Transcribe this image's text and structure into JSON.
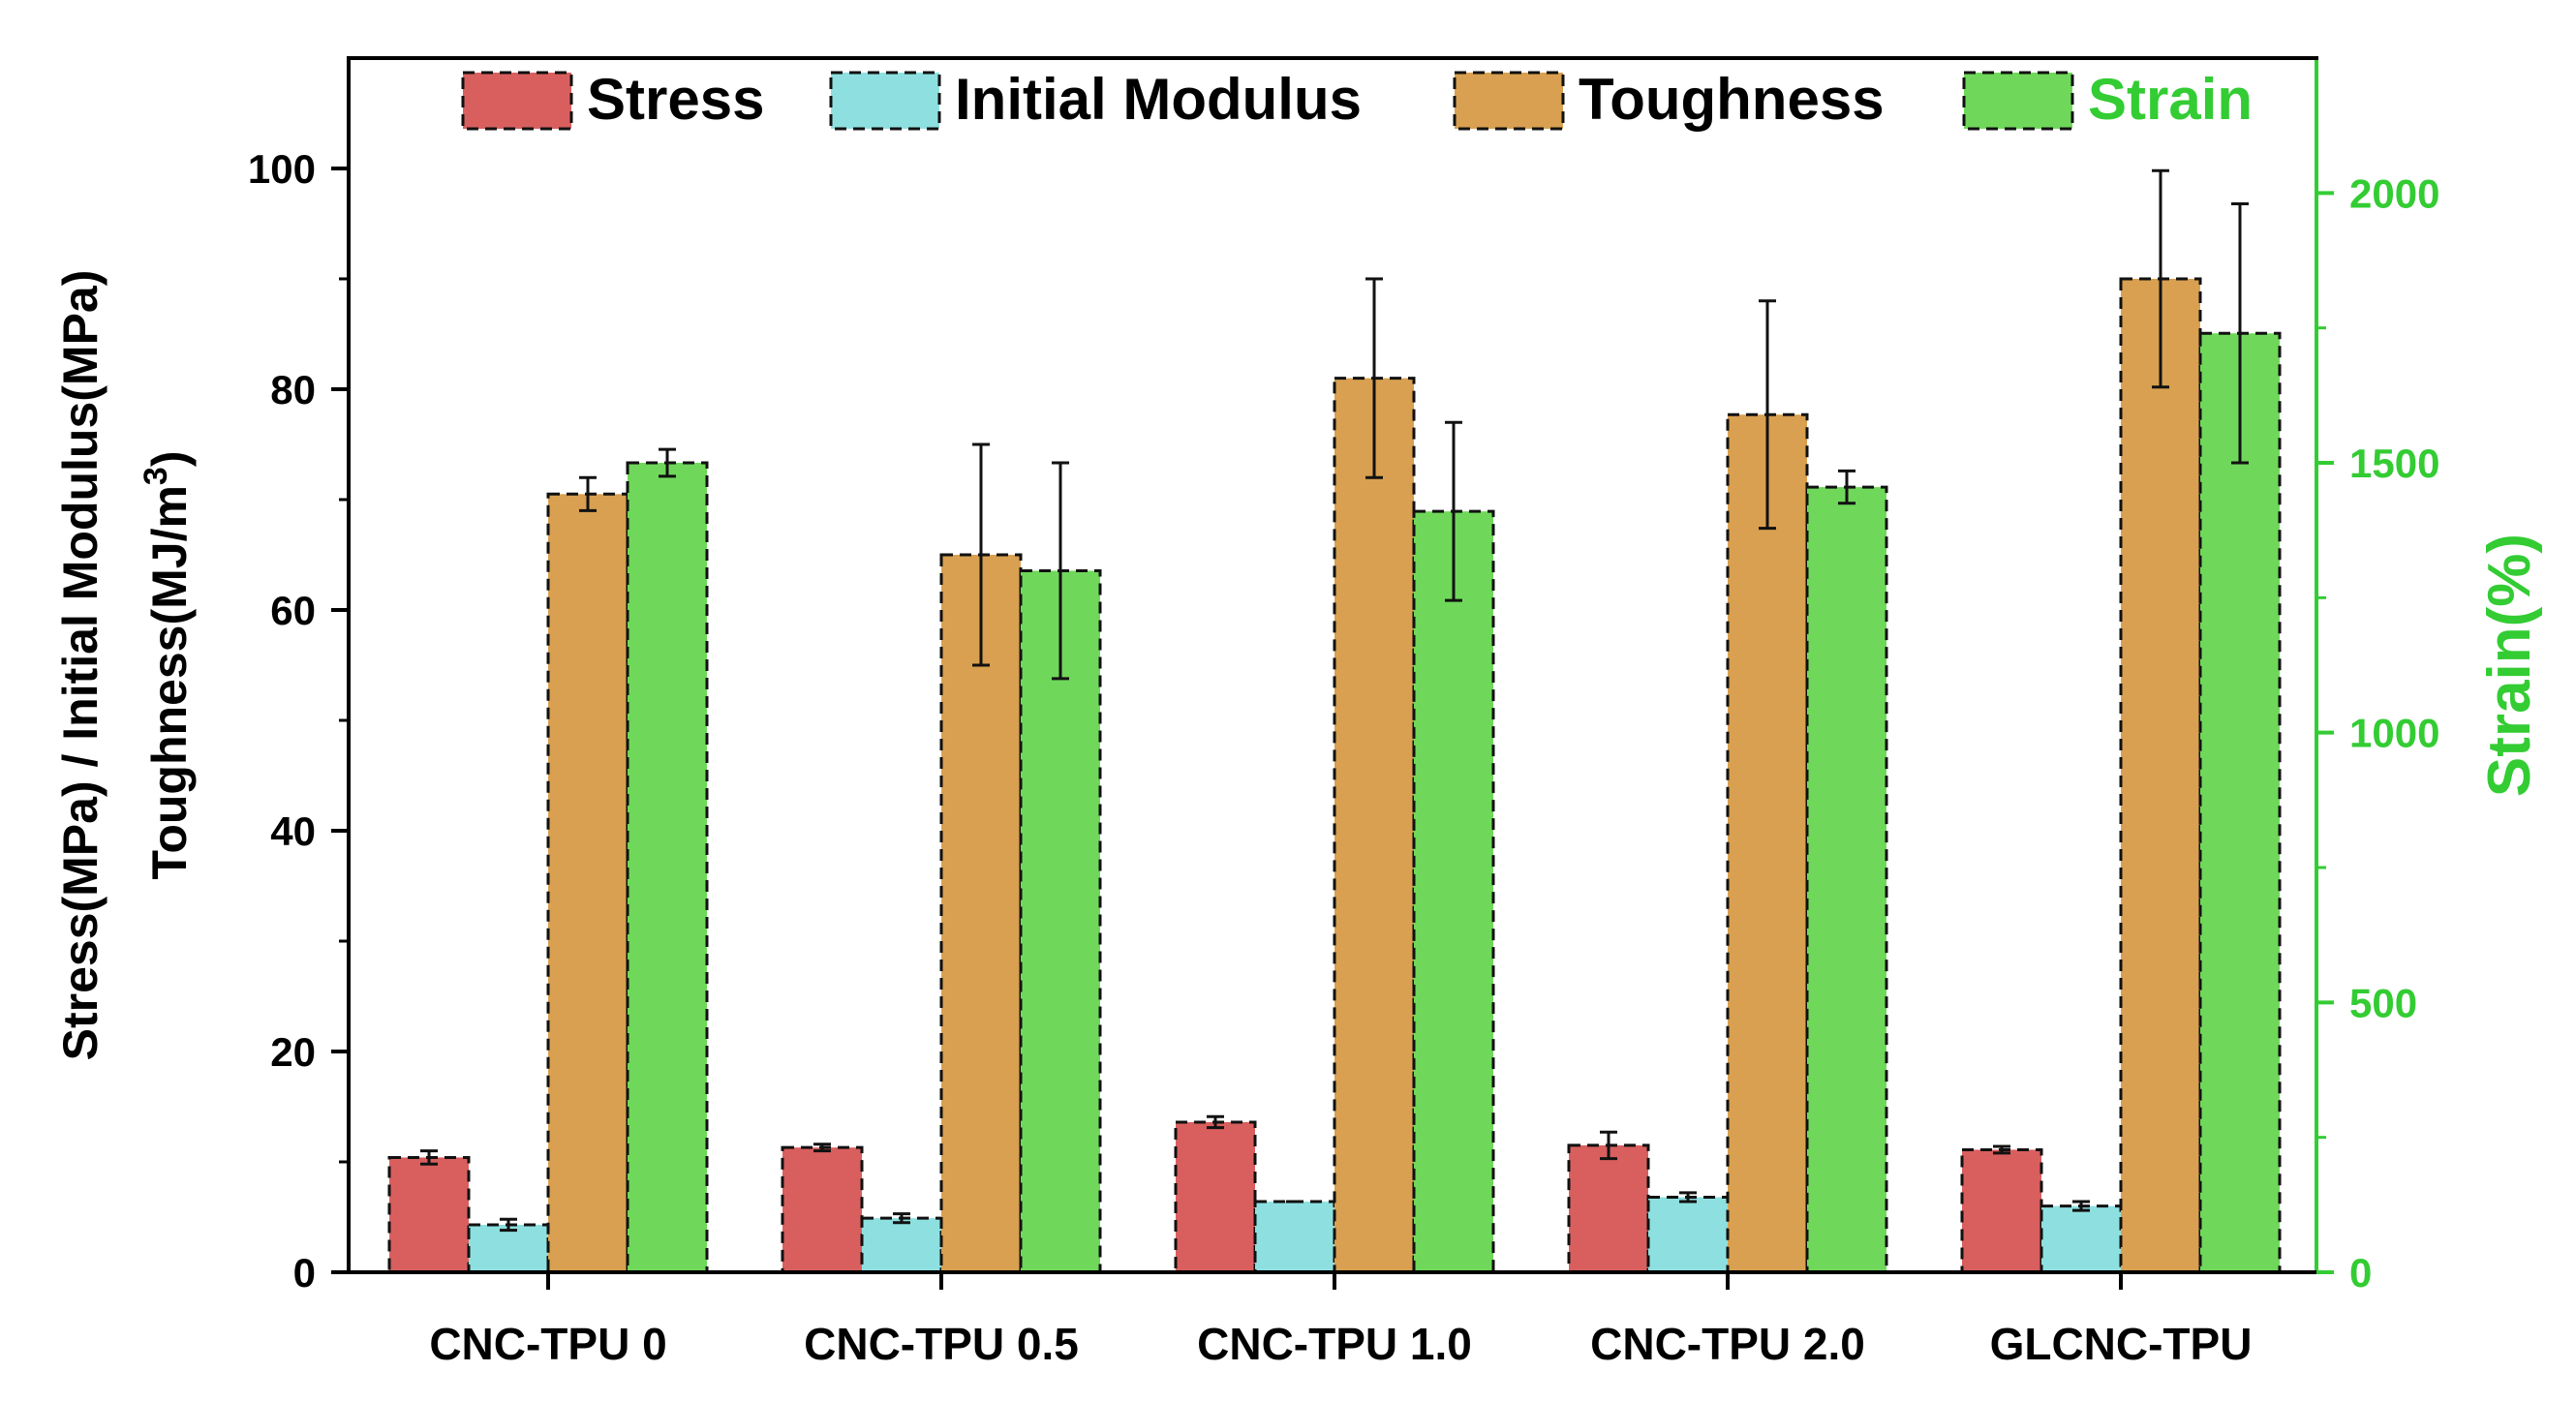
{
  "chart_data": {
    "type": "bar",
    "categories": [
      "CNC-TPU 0",
      "CNC-TPU 0.5",
      "CNC-TPU 1.0",
      "CNC-TPU 2.0",
      "GLCNC-TPU"
    ],
    "series": [
      {
        "name": "Stress",
        "axis": "left",
        "color": "#d95f5f",
        "values": [
          10.4,
          11.3,
          13.6,
          11.5,
          11.1
        ],
        "errors": [
          0.6,
          0.3,
          0.5,
          1.2,
          0.3
        ]
      },
      {
        "name": "Initial Modulus",
        "axis": "left",
        "color": "#8ee0e0",
        "values": [
          4.3,
          4.9,
          6.4,
          6.8,
          6.0
        ],
        "errors": [
          0.5,
          0.4,
          0.0,
          0.4,
          0.4
        ]
      },
      {
        "name": "Toughness",
        "axis": "left",
        "color": "#d8a050",
        "values": [
          70.5,
          65.0,
          81.0,
          77.7,
          90.0
        ],
        "errors": [
          1.5,
          10.0,
          9.0,
          10.3,
          9.8
        ]
      },
      {
        "name": "Strain",
        "axis": "right",
        "color": "#6fd85a",
        "values": [
          1500,
          1300,
          1410,
          1455,
          1740
        ],
        "errors": [
          25,
          200,
          165,
          30,
          240
        ]
      }
    ],
    "left_axis": {
      "label_line1": "Stress(MPa) / Initial Modulus(MPa)",
      "label_line2": "Toughness(MJ/m",
      "label_sup": "3",
      "label_end": ")",
      "ylim": [
        0,
        110
      ],
      "ticks": [
        "0",
        "20",
        "40",
        "60",
        "80",
        "100"
      ]
    },
    "right_axis": {
      "label": "Strain(%)",
      "color": "#33cc33",
      "ylim": [
        0,
        2250
      ],
      "ticks": [
        "0",
        "500",
        "1000",
        "1500",
        "2000"
      ]
    },
    "legend": {
      "position": "top",
      "items": [
        "Stress",
        "Initial Modulus",
        "Toughness",
        "Strain"
      ],
      "strain_text_color": "#33cc33"
    }
  }
}
